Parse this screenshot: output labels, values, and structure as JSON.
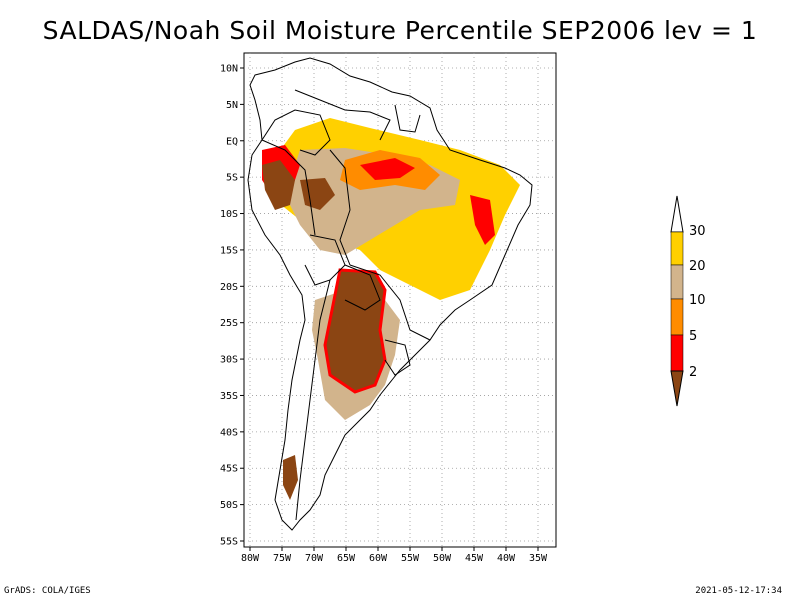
{
  "title": "SALDAS/Noah Soil Moisture Percentile SEP2006 lev = 1",
  "footer": {
    "left": "GrADS: COLA/IGES",
    "right": "2021-05-12-17:34"
  },
  "map": {
    "lat_labels": [
      "10N",
      "5N",
      "EQ",
      "5S",
      "10S",
      "15S",
      "20S",
      "25S",
      "30S",
      "35S",
      "40S",
      "45S",
      "50S",
      "55S"
    ],
    "lon_labels": [
      "80W",
      "75W",
      "70W",
      "65W",
      "60W",
      "55W",
      "50W",
      "45W",
      "40W",
      "35W"
    ],
    "lat_range": [
      10,
      -55
    ],
    "lon_range": [
      -80,
      -35
    ]
  },
  "colorbar": {
    "labels": [
      "30",
      "20",
      "10",
      "5",
      "2"
    ],
    "colors": {
      "above_30": "#ffffff",
      "20_30": "#ffd000",
      "10_20": "#d2b48c",
      "5_10": "#ff8c00",
      "2_5": "#ff0000",
      "below_2": "#8b4513"
    }
  }
}
